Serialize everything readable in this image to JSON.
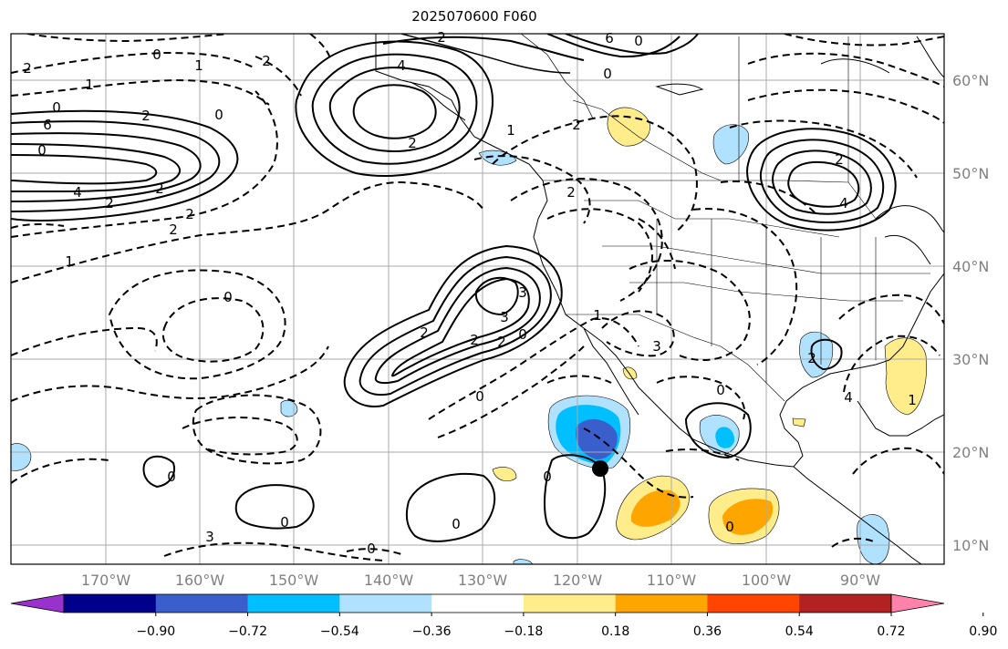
{
  "title": "2025070600 F060",
  "map": {
    "lon_labels": [
      "170°W",
      "160°W",
      "150°W",
      "140°W",
      "130°W",
      "120°W",
      "110°W",
      "100°W",
      "90°W"
    ],
    "lat_labels": [
      "60°N",
      "50°N",
      "40°N",
      "30°N",
      "20°N",
      "10°N"
    ],
    "gridline_color": "#aaaaaa",
    "tick_label_color": "#808080"
  },
  "contour_labels": {
    "solid": [
      "0",
      "2",
      "4",
      "6",
      "2",
      "4",
      "3",
      "2",
      "2",
      "3",
      "4",
      "2",
      "0",
      "0",
      "0",
      "0",
      "2",
      "0",
      "0",
      "0",
      "2",
      "6"
    ],
    "dashed": [
      "2",
      "1",
      "1",
      "2",
      "0",
      "0",
      "2",
      "2",
      "2",
      "1",
      "2",
      "0",
      "0",
      "3",
      "1",
      "1",
      "2",
      "2",
      "0",
      "0",
      "0",
      "0",
      "3",
      "4",
      "2",
      "1"
    ]
  },
  "marker": {
    "label": "storm-center",
    "lon": -116.5,
    "lat": 18.3
  },
  "colorbar": {
    "ticks": [
      "−0.90",
      "−0.72",
      "−0.54",
      "−0.36",
      "−0.18",
      "0.18",
      "0.36",
      "0.54",
      "0.72",
      "0.90"
    ],
    "colors": [
      "#9932cc",
      "#00008b",
      "#3a5fcd",
      "#00bfff",
      "#b0e2ff",
      "#ffffff",
      "#ffec8b",
      "#ffa500",
      "#ff4500",
      "#b22222",
      "#ff82ab"
    ]
  }
}
